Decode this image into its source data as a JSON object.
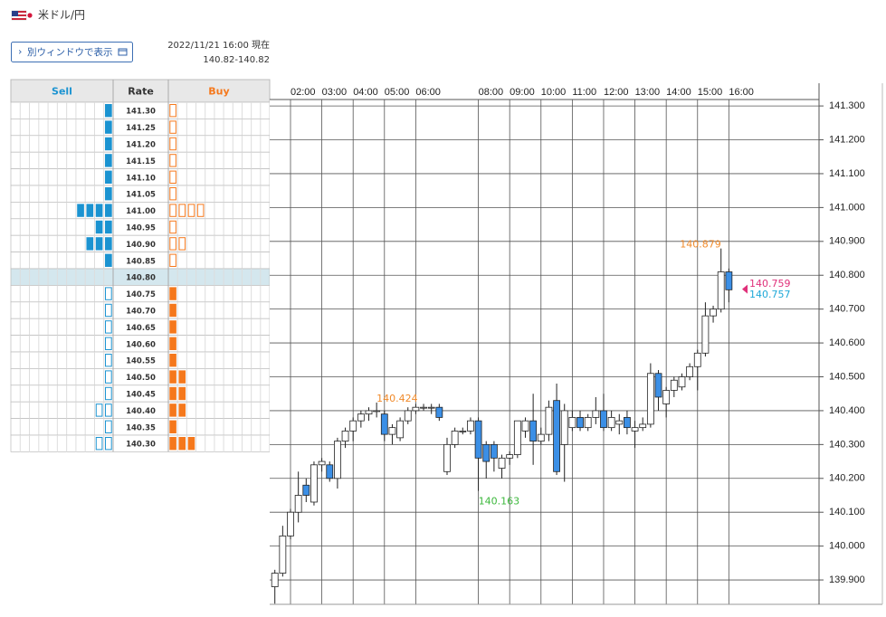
{
  "header": {
    "pair": "米ドル/円",
    "button": "別ウィンドウで表示",
    "timestamp": "2022/11/21 16:00 現在",
    "quote": "140.82-140.82"
  },
  "order_book": {
    "columns": [
      "Sell",
      "Rate",
      "Buy"
    ],
    "current": "140.80",
    "sell_color": "#1b93d1",
    "buy_color": "#f5781c",
    "rows": [
      {
        "rate": "141.30",
        "sell": 1,
        "buy": 1
      },
      {
        "rate": "141.25",
        "sell": 1,
        "buy": 1
      },
      {
        "rate": "141.20",
        "sell": 1,
        "buy": 1
      },
      {
        "rate": "141.15",
        "sell": 1,
        "buy": 1
      },
      {
        "rate": "141.10",
        "sell": 1,
        "buy": 1
      },
      {
        "rate": "141.05",
        "sell": 1,
        "buy": 1
      },
      {
        "rate": "141.00",
        "sell": 4,
        "buy": 4
      },
      {
        "rate": "140.95",
        "sell": 2,
        "buy": 1
      },
      {
        "rate": "140.90",
        "sell": 3,
        "buy": 2
      },
      {
        "rate": "140.85",
        "sell": 1,
        "buy": 1
      },
      {
        "rate": "140.80",
        "sell": 0,
        "buy": 0
      },
      {
        "rate": "140.75",
        "sell": 1,
        "buy": 1
      },
      {
        "rate": "140.70",
        "sell": 1,
        "buy": 1
      },
      {
        "rate": "140.65",
        "sell": 1,
        "buy": 1
      },
      {
        "rate": "140.60",
        "sell": 1,
        "buy": 1
      },
      {
        "rate": "140.55",
        "sell": 1,
        "buy": 1
      },
      {
        "rate": "140.50",
        "sell": 1,
        "buy": 2
      },
      {
        "rate": "140.45",
        "sell": 1,
        "buy": 2
      },
      {
        "rate": "140.40",
        "sell": 2,
        "buy": 2
      },
      {
        "rate": "140.35",
        "sell": 1,
        "buy": 1
      },
      {
        "rate": "140.30",
        "sell": 2,
        "buy": 3
      }
    ]
  },
  "chart_data": {
    "type": "candlestick",
    "up_color": "#ffffff",
    "down_color": "#3b8fe6",
    "grid": true,
    "x": [
      1.5,
      1.75,
      2,
      2.25,
      2.5,
      2.75,
      3,
      3.25,
      3.5,
      3.75,
      4,
      4.25,
      4.5,
      4.75,
      5,
      5.25,
      5.5,
      5.75,
      6,
      6.25,
      6.5,
      6.75,
      7,
      7.25,
      7.5,
      7.75,
      8,
      8.25,
      8.5,
      8.75,
      9,
      9.25,
      9.5,
      9.75,
      10,
      10.25,
      10.5,
      10.75,
      11,
      11.25,
      11.5,
      11.75,
      12,
      12.25,
      12.5,
      12.75,
      13,
      13.25,
      13.5,
      13.75,
      14,
      14.25,
      14.5,
      14.75,
      15,
      15.25,
      15.5,
      15.75,
      16
    ],
    "open": [
      139.88,
      139.92,
      140.03,
      140.1,
      140.18,
      140.13,
      140.24,
      140.24,
      140.2,
      140.31,
      140.34,
      140.37,
      140.39,
      140.4,
      140.39,
      140.33,
      140.32,
      140.37,
      140.4,
      140.41,
      140.41,
      140.41,
      140.22,
      140.3,
      140.34,
      140.34,
      140.37,
      140.3,
      140.3,
      140.23,
      140.26,
      140.27,
      140.34,
      140.37,
      140.31,
      140.33,
      140.43,
      140.3,
      140.35,
      140.38,
      140.35,
      140.38,
      140.4,
      140.35,
      140.36,
      140.38,
      140.34,
      140.35,
      140.36,
      140.51,
      140.42,
      140.46,
      140.47,
      140.5,
      140.53,
      140.57,
      140.68,
      140.7,
      140.81
    ],
    "high": [
      139.93,
      140.06,
      140.11,
      140.22,
      140.2,
      140.25,
      140.26,
      140.25,
      140.32,
      140.35,
      140.38,
      140.4,
      140.41,
      140.424,
      140.4,
      140.36,
      140.38,
      140.41,
      140.42,
      140.42,
      140.42,
      140.42,
      140.32,
      140.35,
      140.35,
      140.38,
      140.38,
      140.31,
      140.31,
      140.27,
      140.28,
      140.37,
      140.38,
      140.45,
      140.35,
      140.43,
      140.48,
      140.42,
      140.4,
      140.4,
      140.39,
      140.44,
      140.45,
      140.4,
      140.39,
      140.4,
      140.37,
      140.38,
      140.54,
      140.52,
      140.47,
      140.5,
      140.51,
      140.54,
      140.58,
      140.72,
      140.71,
      140.879,
      140.82
    ],
    "low": [
      139.83,
      139.91,
      140.02,
      140.07,
      140.13,
      140.12,
      140.22,
      140.19,
      140.17,
      140.29,
      140.31,
      140.35,
      140.37,
      140.38,
      140.31,
      140.3,
      140.31,
      140.36,
      140.39,
      140.4,
      140.39,
      140.37,
      140.21,
      140.29,
      140.33,
      140.33,
      140.163,
      140.2,
      140.22,
      140.2,
      140.24,
      140.26,
      140.32,
      140.24,
      140.3,
      140.31,
      140.21,
      140.19,
      140.34,
      140.34,
      140.34,
      140.36,
      140.34,
      140.34,
      140.33,
      140.33,
      140.29,
      140.34,
      140.35,
      140.4,
      140.38,
      140.44,
      140.46,
      140.49,
      140.46,
      140.56,
      140.66,
      140.69,
      140.72
    ],
    "close": [
      139.92,
      140.03,
      140.1,
      140.15,
      140.15,
      140.24,
      140.25,
      140.2,
      140.31,
      140.34,
      140.37,
      140.39,
      140.4,
      140.4,
      140.33,
      140.35,
      140.37,
      140.4,
      140.41,
      140.41,
      140.41,
      140.38,
      140.3,
      140.34,
      140.34,
      140.37,
      140.26,
      140.25,
      140.26,
      140.26,
      140.27,
      140.37,
      140.37,
      140.31,
      140.33,
      140.41,
      140.22,
      140.4,
      140.38,
      140.35,
      140.38,
      140.4,
      140.35,
      140.38,
      140.37,
      140.35,
      140.35,
      140.36,
      140.51,
      140.44,
      140.46,
      140.49,
      140.5,
      140.53,
      140.57,
      140.68,
      140.7,
      140.81,
      140.757
    ],
    "xlim": [
      1.335,
      18.88
    ],
    "xticks": [
      {
        "value": 2,
        "label": "02:00"
      },
      {
        "value": 3,
        "label": "03:00"
      },
      {
        "value": 4,
        "label": "04:00"
      },
      {
        "value": 5,
        "label": "05:00"
      },
      {
        "value": 6,
        "label": "06:00"
      },
      {
        "value": 8,
        "label": "08:00"
      },
      {
        "value": 9,
        "label": "09:00"
      },
      {
        "value": 10,
        "label": "10:00"
      },
      {
        "value": 11,
        "label": "11:00"
      },
      {
        "value": 12,
        "label": "12:00"
      },
      {
        "value": 13,
        "label": "13:00"
      },
      {
        "value": 14,
        "label": "14:00"
      },
      {
        "value": 15,
        "label": "15:00"
      },
      {
        "value": 16,
        "label": "16:00"
      }
    ],
    "ylim": [
      139.828,
      141.319
    ],
    "yticks": [
      {
        "value": 139.9,
        "label": "139.900"
      },
      {
        "value": 140.0,
        "label": "140.000"
      },
      {
        "value": 140.1,
        "label": "140.100"
      },
      {
        "value": 140.2,
        "label": "140.200"
      },
      {
        "value": 140.3,
        "label": "140.300"
      },
      {
        "value": 140.4,
        "label": "140.400"
      },
      {
        "value": 140.5,
        "label": "140.500"
      },
      {
        "value": 140.6,
        "label": "140.600"
      },
      {
        "value": 140.7,
        "label": "140.700"
      },
      {
        "value": 140.8,
        "label": "140.800"
      },
      {
        "value": 140.9,
        "label": "140.900"
      },
      {
        "value": 141.0,
        "label": "141.000"
      },
      {
        "value": 141.1,
        "label": "141.100"
      },
      {
        "value": 141.2,
        "label": "141.200"
      },
      {
        "value": 141.3,
        "label": "141.300"
      }
    ],
    "annotations": [
      {
        "x": 4.75,
        "value": 140.424,
        "label": "140.424",
        "color": "#f08a2a",
        "side": "top"
      },
      {
        "x": 8,
        "value": 140.163,
        "label": "140.163",
        "color": "#3cb83c",
        "side": "bottom"
      },
      {
        "x": 15.75,
        "value": 140.879,
        "label": "140.879",
        "color": "#f08a2a",
        "side": "top"
      }
    ],
    "price_labels": [
      {
        "value": 140.759,
        "label": "140.759",
        "color": "#e0307a"
      },
      {
        "value": 140.757,
        "label": "140.757",
        "color": "#1ea8d8"
      }
    ]
  }
}
